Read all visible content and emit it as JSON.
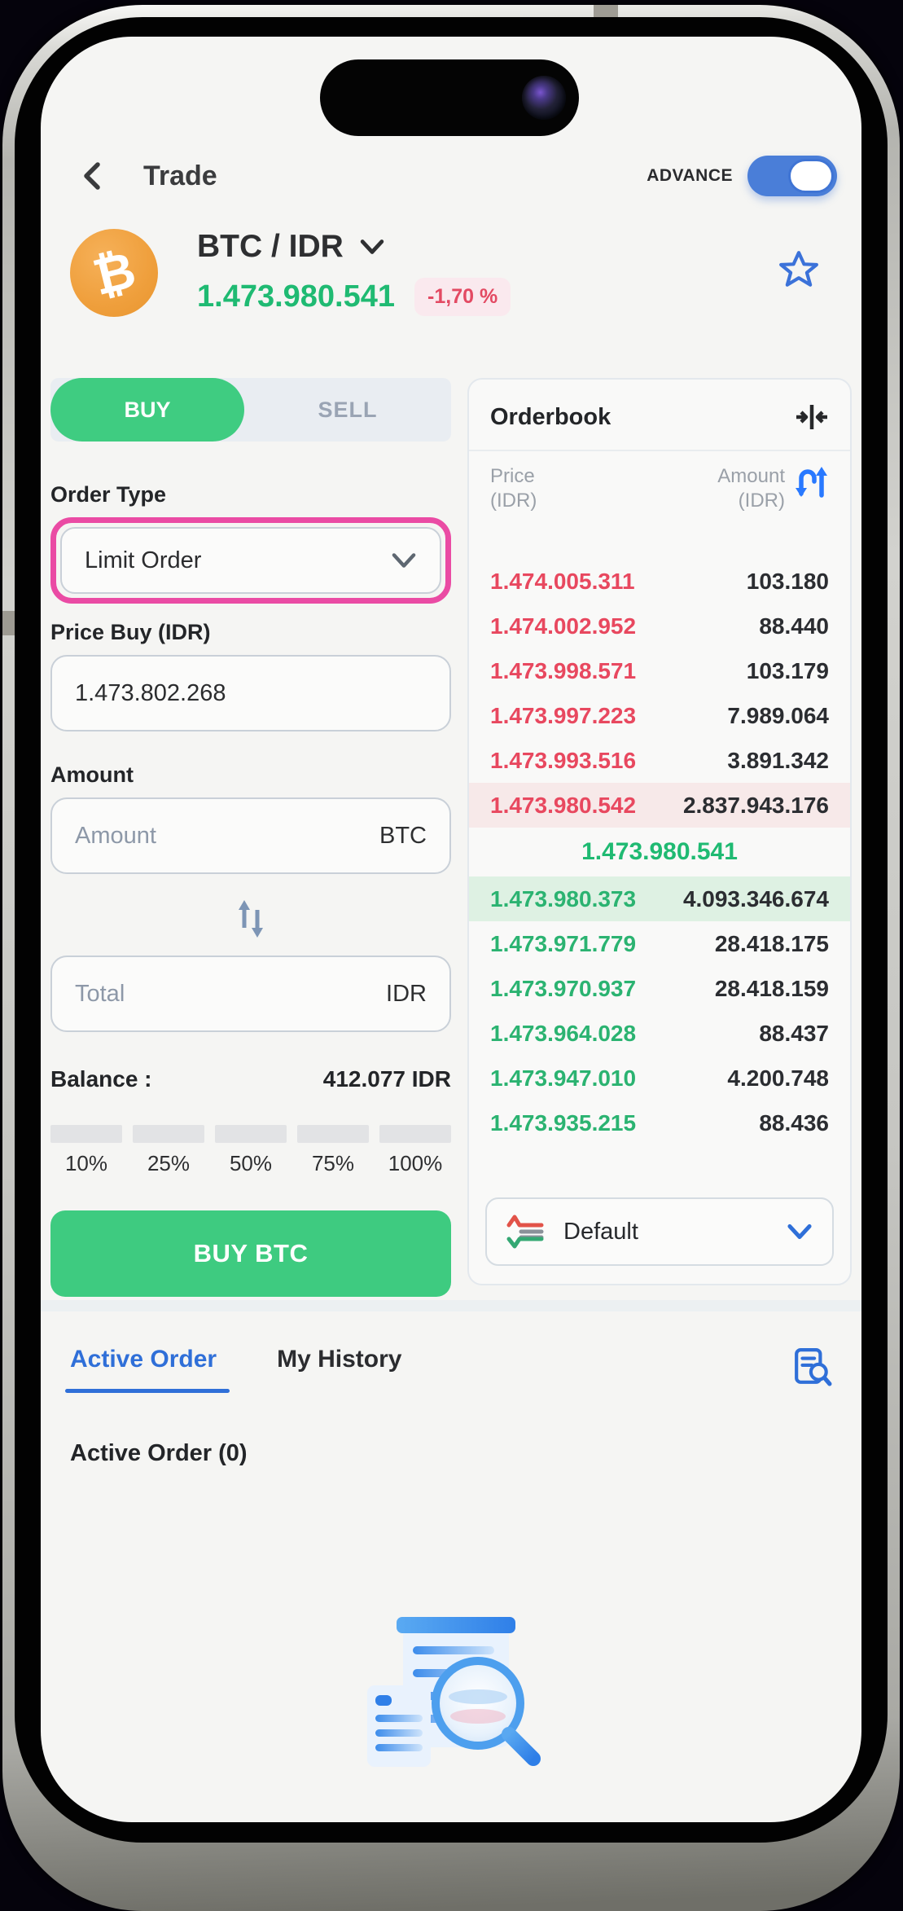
{
  "header": {
    "title": "Trade",
    "advance_label": "ADVANCE",
    "advance_on": true
  },
  "pair": {
    "name": "BTC / IDR",
    "price": "1.473.980.541",
    "change": "-1,70 %"
  },
  "trade_form": {
    "buy_tab": "BUY",
    "sell_tab": "SELL",
    "order_type_label": "Order Type",
    "order_type_value": "Limit Order",
    "price_label": "Price Buy (IDR)",
    "price_value": "1.473.802.268",
    "amount_label": "Amount",
    "amount_placeholder": "Amount",
    "amount_unit": "BTC",
    "total_placeholder": "Total",
    "total_unit": "IDR",
    "balance_label": "Balance :",
    "balance_value": "412.077 IDR",
    "percent_options": [
      "10%",
      "25%",
      "50%",
      "75%",
      "100%"
    ],
    "submit_label": "BUY BTC"
  },
  "orderbook": {
    "title": "Orderbook",
    "price_col_line1": "Price",
    "price_col_line2": "(IDR)",
    "amount_col_line1": "Amount",
    "amount_col_line2": "(IDR)",
    "asks": [
      {
        "price": "1.474.005.311",
        "amount": "103.180"
      },
      {
        "price": "1.474.002.952",
        "amount": "88.440"
      },
      {
        "price": "1.473.998.571",
        "amount": "103.179"
      },
      {
        "price": "1.473.997.223",
        "amount": "7.989.064"
      },
      {
        "price": "1.473.993.516",
        "amount": "3.891.342"
      },
      {
        "price": "1.473.980.542",
        "amount": "2.837.943.176",
        "highlight": true
      }
    ],
    "last_price": "1.473.980.541",
    "bids": [
      {
        "price": "1.473.980.373",
        "amount": "4.093.346.674",
        "highlight": true
      },
      {
        "price": "1.473.971.779",
        "amount": "28.418.175"
      },
      {
        "price": "1.473.970.937",
        "amount": "28.418.159"
      },
      {
        "price": "1.473.964.028",
        "amount": "88.437"
      },
      {
        "price": "1.473.947.010",
        "amount": "4.200.748"
      },
      {
        "price": "1.473.935.215",
        "amount": "88.436"
      }
    ],
    "view_selector_value": "Default"
  },
  "orders": {
    "active_tab": "Active Order",
    "history_tab": "My History",
    "empty_heading": "Active Order (0)"
  },
  "icons": {
    "back": "chevron-left",
    "pair_selector": "chevron-down",
    "favorite": "star-outline",
    "orderbook_collapse": "collapse-horizontal",
    "orderbook_sort": "swap-curved",
    "amount_total_swap": "swap-vertical",
    "orderbook_view": "depth-lines",
    "order_search": "document-search",
    "empty_state": "list-magnifier"
  },
  "colors": {
    "accent_green": "#3ecb80",
    "accent_red": "#e8485f",
    "accent_blue": "#2f6fd8",
    "toggle_blue": "#4a7ed8",
    "highlight_pink": "#ea4ba4"
  }
}
